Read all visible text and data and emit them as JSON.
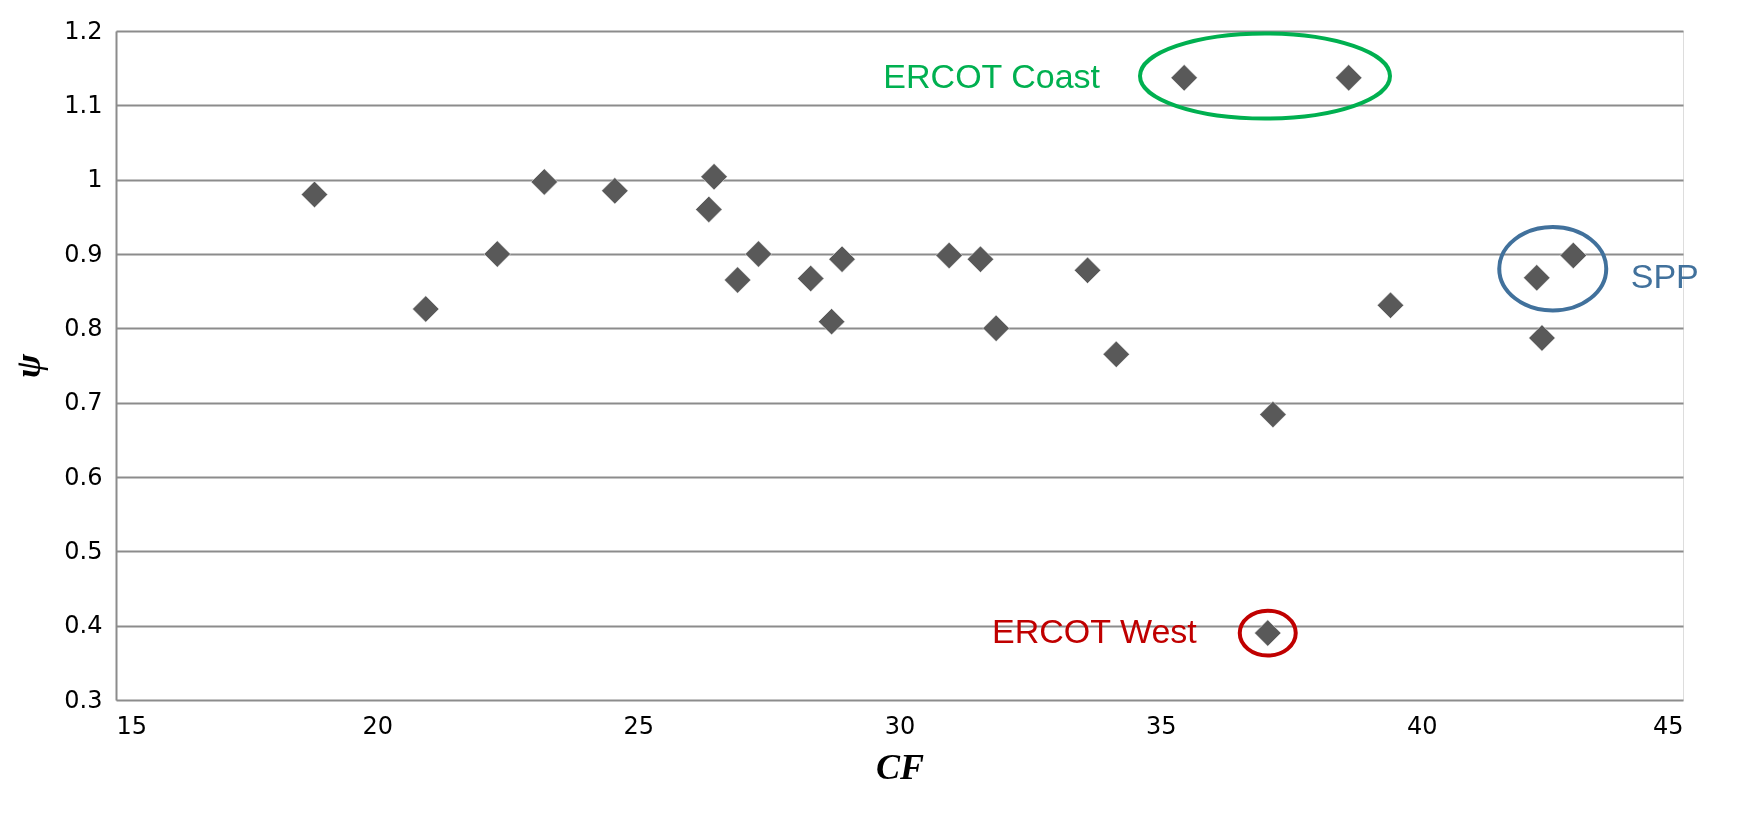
{
  "chart_data": {
    "type": "scatter",
    "xlabel": "CF",
    "ylabel": "ψ",
    "x": [
      18.8,
      20.93,
      22.3,
      23.2,
      24.55,
      26.45,
      26.35,
      27.3,
      26.9,
      28.3,
      28.7,
      28.9,
      30.95,
      31.55,
      31.85,
      33.6,
      34.15,
      35.45,
      38.6,
      37.15,
      39.4,
      42.2,
      42.9,
      42.3,
      37.05
    ],
    "series": [
      {
        "color": "#595959",
        "values": [
          0.98,
          0.826,
          0.9,
          0.997,
          0.985,
          1.004,
          0.96,
          0.9,
          0.865,
          0.867,
          0.809,
          0.893,
          0.898,
          0.893,
          0.8,
          0.878,
          0.765,
          1.137,
          1.137,
          0.684,
          0.831,
          0.868,
          0.898,
          0.787,
          0.39
        ]
      }
    ],
    "xlim": [
      15,
      45
    ],
    "xticks": [
      15,
      20,
      25,
      30,
      35,
      40,
      45
    ],
    "ylim": [
      0.3,
      1.2
    ],
    "yticks": [
      0.3,
      0.4,
      0.5,
      0.6,
      0.7,
      0.8,
      0.9,
      1,
      1.1,
      1.2
    ],
    "grid": "y",
    "marker": "diamond",
    "annotations": [
      "ERCOT Coast",
      {
        "text": "SPP",
        "x": 42.2,
        "y": 0.868
      },
      {
        "text": "ERCOT West",
        "x": 37.05,
        "y": 0.39
      }
    ]
  }
}
